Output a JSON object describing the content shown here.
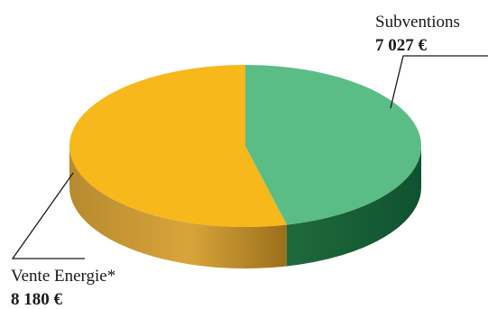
{
  "chart_data": {
    "type": "pie",
    "style": "3d",
    "categories": [
      "Subventions",
      "Vente Energie*"
    ],
    "values": [
      7027,
      8180
    ],
    "value_labels": [
      "7 027 €",
      "8 180 €"
    ],
    "colors": {
      "Subventions": "#5bbd86",
      "Vente Energie*": "#f6b81b"
    },
    "legend": "none",
    "title": ""
  }
}
